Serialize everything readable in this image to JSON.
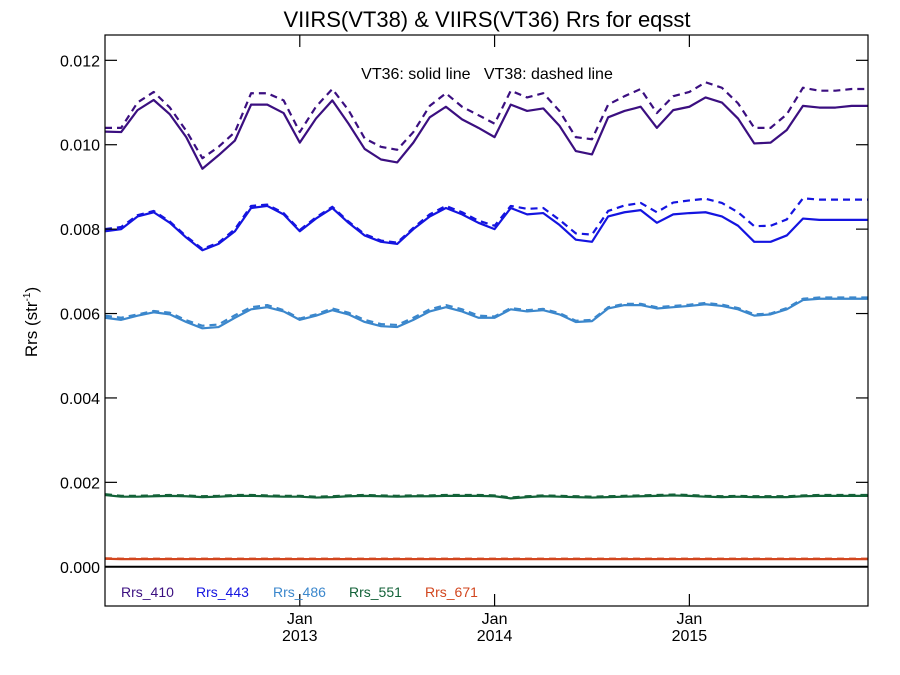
{
  "chart_data": {
    "type": "line",
    "title": "VIIRS(VT38) & VIIRS(VT36)  Rrs for eqsst",
    "ylabel_main": "Rrs (str",
    "ylabel_exp": "-1",
    "ylabel_tail": ")",
    "annotation": "VT36: solid line   VT38: dashed line",
    "ylim": [
      -0.00093,
      0.0126
    ],
    "yticks": [
      0.0,
      0.002,
      0.004,
      0.006,
      0.008,
      0.01,
      0.012
    ],
    "ytick_labels": [
      "0.000",
      "0.002",
      "0.004",
      "0.006",
      "0.008",
      "0.010",
      "0.012"
    ],
    "xlim": [
      2012.0,
      2015.917
    ],
    "xticks": [
      {
        "x": 2013.0,
        "month": "Jan",
        "year": "2013"
      },
      {
        "x": 2014.0,
        "month": "Jan",
        "year": "2014"
      },
      {
        "x": 2015.0,
        "month": "Jan",
        "year": "2015"
      }
    ],
    "months": [
      2012.0,
      2012.083,
      2012.167,
      2012.25,
      2012.333,
      2012.417,
      2012.5,
      2012.583,
      2012.667,
      2012.75,
      2012.833,
      2012.917,
      2013.0,
      2013.083,
      2013.167,
      2013.25,
      2013.333,
      2013.417,
      2013.5,
      2013.583,
      2013.667,
      2013.75,
      2013.833,
      2013.917,
      2014.0,
      2014.083,
      2014.167,
      2014.25,
      2014.333,
      2014.417,
      2014.5,
      2014.583,
      2014.667,
      2014.75,
      2014.833,
      2014.917,
      2015.0,
      2015.083,
      2015.167,
      2015.25,
      2015.333,
      2015.417,
      2015.5,
      2015.583,
      2015.667,
      2015.75,
      2015.833,
      2015.917
    ],
    "zero_line": 0.0,
    "grid": false,
    "legend_position": "bottom-left",
    "series": [
      {
        "name": "Rrs_410",
        "color": "#3b0f80",
        "solid": [
          0.01031,
          0.0103,
          0.01082,
          0.01106,
          0.01072,
          0.01018,
          0.00943,
          0.00975,
          0.0101,
          0.01095,
          0.01095,
          0.01075,
          0.01005,
          0.01062,
          0.01105,
          0.0105,
          0.0099,
          0.00965,
          0.00958,
          0.01005,
          0.01065,
          0.0109,
          0.0106,
          0.0104,
          0.01018,
          0.01095,
          0.0108,
          0.01086,
          0.01045,
          0.00985,
          0.00977,
          0.01065,
          0.0108,
          0.0109,
          0.0104,
          0.01082,
          0.0109,
          0.01112,
          0.011,
          0.01062,
          0.01003,
          0.01005,
          0.01035,
          0.01092,
          0.01088,
          0.01088,
          0.01092,
          0.01092
        ],
        "dashed": [
          0.0104,
          0.0104,
          0.011,
          0.01125,
          0.01088,
          0.01033,
          0.00968,
          0.00995,
          0.0103,
          0.01122,
          0.01122,
          0.01105,
          0.0103,
          0.0109,
          0.01132,
          0.01082,
          0.01015,
          0.00995,
          0.00988,
          0.0103,
          0.01092,
          0.01122,
          0.0109,
          0.0107,
          0.0105,
          0.01128,
          0.01112,
          0.01122,
          0.0108,
          0.01018,
          0.01013,
          0.01095,
          0.01115,
          0.01132,
          0.01075,
          0.01115,
          0.01125,
          0.01148,
          0.01135,
          0.01098,
          0.0104,
          0.0104,
          0.01072,
          0.01135,
          0.01128,
          0.01128,
          0.01132,
          0.01132
        ]
      },
      {
        "name": "Rrs_443",
        "color": "#1414e0",
        "solid": [
          0.00795,
          0.008,
          0.0083,
          0.0084,
          0.00815,
          0.0078,
          0.0075,
          0.00765,
          0.00795,
          0.0085,
          0.00855,
          0.00835,
          0.00795,
          0.00825,
          0.0085,
          0.00815,
          0.00785,
          0.0077,
          0.00765,
          0.008,
          0.0083,
          0.0085,
          0.00835,
          0.00815,
          0.008,
          0.0085,
          0.00835,
          0.00838,
          0.0081,
          0.00775,
          0.0077,
          0.0083,
          0.0084,
          0.00845,
          0.00815,
          0.00835,
          0.00838,
          0.0084,
          0.0083,
          0.00808,
          0.0077,
          0.0077,
          0.00785,
          0.00825,
          0.00822,
          0.00822,
          0.00822,
          0.00822
        ],
        "dashed": [
          0.008,
          0.00805,
          0.00833,
          0.00843,
          0.00818,
          0.00783,
          0.00753,
          0.00768,
          0.008,
          0.00855,
          0.00858,
          0.00838,
          0.00798,
          0.00828,
          0.00853,
          0.00818,
          0.00788,
          0.00773,
          0.00768,
          0.00803,
          0.00835,
          0.00855,
          0.0084,
          0.0082,
          0.00808,
          0.00855,
          0.00848,
          0.0085,
          0.00822,
          0.0079,
          0.00787,
          0.00843,
          0.00856,
          0.00862,
          0.0084,
          0.00863,
          0.00868,
          0.00872,
          0.00862,
          0.0084,
          0.00807,
          0.00808,
          0.00823,
          0.00873,
          0.0087,
          0.0087,
          0.0087,
          0.0087
        ]
      },
      {
        "name": "Rrs_486",
        "color": "#3b87cc",
        "solid": [
          0.0059,
          0.00585,
          0.00595,
          0.00603,
          0.00598,
          0.0058,
          0.00565,
          0.00568,
          0.0059,
          0.0061,
          0.00615,
          0.00605,
          0.00585,
          0.00595,
          0.00608,
          0.00598,
          0.0058,
          0.0057,
          0.00568,
          0.00585,
          0.00605,
          0.00615,
          0.00605,
          0.0059,
          0.0059,
          0.0061,
          0.00605,
          0.00608,
          0.00598,
          0.0058,
          0.00582,
          0.00612,
          0.0062,
          0.0062,
          0.00612,
          0.00615,
          0.00618,
          0.00622,
          0.00618,
          0.0061,
          0.00595,
          0.00598,
          0.0061,
          0.00632,
          0.00635,
          0.00635,
          0.00635,
          0.00635
        ],
        "dashed": [
          0.00595,
          0.0059,
          0.00598,
          0.00606,
          0.00602,
          0.00584,
          0.00571,
          0.00574,
          0.00596,
          0.00615,
          0.0062,
          0.00608,
          0.00588,
          0.00598,
          0.00612,
          0.00602,
          0.00585,
          0.00575,
          0.00573,
          0.0059,
          0.0061,
          0.0062,
          0.0061,
          0.00595,
          0.00593,
          0.00613,
          0.00608,
          0.00611,
          0.00601,
          0.00583,
          0.00585,
          0.00615,
          0.00623,
          0.00623,
          0.00615,
          0.00618,
          0.00621,
          0.00625,
          0.00621,
          0.00613,
          0.00598,
          0.006,
          0.00613,
          0.00635,
          0.00638,
          0.00638,
          0.00638,
          0.00638
        ]
      },
      {
        "name": "Rrs_551",
        "color": "#136238",
        "solid": [
          0.0017,
          0.00166,
          0.00166,
          0.00167,
          0.00168,
          0.00167,
          0.00165,
          0.00166,
          0.00168,
          0.00168,
          0.00167,
          0.00166,
          0.00166,
          0.00164,
          0.00165,
          0.00167,
          0.00168,
          0.00167,
          0.00166,
          0.00167,
          0.00167,
          0.00168,
          0.00168,
          0.00168,
          0.00167,
          0.00162,
          0.00165,
          0.00167,
          0.00166,
          0.00165,
          0.00164,
          0.00165,
          0.00166,
          0.00167,
          0.00168,
          0.00169,
          0.00168,
          0.00166,
          0.00165,
          0.00166,
          0.00165,
          0.00165,
          0.00165,
          0.00167,
          0.00168,
          0.00168,
          0.00168,
          0.00168
        ],
        "dashed": [
          0.00172,
          0.00168,
          0.00168,
          0.00169,
          0.0017,
          0.00169,
          0.00167,
          0.00168,
          0.0017,
          0.0017,
          0.00169,
          0.00168,
          0.00168,
          0.00166,
          0.00167,
          0.00169,
          0.0017,
          0.00169,
          0.00168,
          0.00169,
          0.00169,
          0.0017,
          0.0017,
          0.0017,
          0.00169,
          0.00164,
          0.00167,
          0.00169,
          0.00168,
          0.00167,
          0.00166,
          0.00167,
          0.00168,
          0.00169,
          0.0017,
          0.00171,
          0.0017,
          0.00168,
          0.00167,
          0.00168,
          0.00167,
          0.00167,
          0.00167,
          0.00169,
          0.0017,
          0.0017,
          0.0017,
          0.0017
        ]
      },
      {
        "name": "Rrs_671",
        "color": "#d2461e",
        "solid": [
          0.00019,
          0.00018,
          0.00018,
          0.00018,
          0.00018,
          0.00018,
          0.00018,
          0.00018,
          0.00018,
          0.00018,
          0.00018,
          0.00018,
          0.00018,
          0.00018,
          0.00018,
          0.00018,
          0.00018,
          0.00018,
          0.00018,
          0.00018,
          0.00018,
          0.00018,
          0.00018,
          0.00018,
          0.00018,
          0.00018,
          0.00018,
          0.00018,
          0.00018,
          0.00018,
          0.00018,
          0.00018,
          0.00018,
          0.00018,
          0.00018,
          0.00018,
          0.00018,
          0.00018,
          0.00018,
          0.00018,
          0.00018,
          0.00018,
          0.00018,
          0.00018,
          0.00018,
          0.00018,
          0.00018,
          0.00018
        ],
        "dashed": [
          0.0002,
          0.00019,
          0.00019,
          0.00019,
          0.00019,
          0.00019,
          0.00019,
          0.00019,
          0.00019,
          0.00019,
          0.00019,
          0.00019,
          0.00019,
          0.00019,
          0.00019,
          0.00019,
          0.00019,
          0.00019,
          0.00019,
          0.00019,
          0.00019,
          0.00019,
          0.00019,
          0.00019,
          0.00019,
          0.00019,
          0.00019,
          0.00019,
          0.00019,
          0.00019,
          0.00019,
          0.00019,
          0.00019,
          0.00019,
          0.00019,
          0.00019,
          0.00019,
          0.00019,
          0.00019,
          0.00019,
          0.00019,
          0.00019,
          0.00019,
          0.00019,
          0.00019,
          0.00019,
          0.00019,
          0.00019
        ]
      }
    ]
  }
}
